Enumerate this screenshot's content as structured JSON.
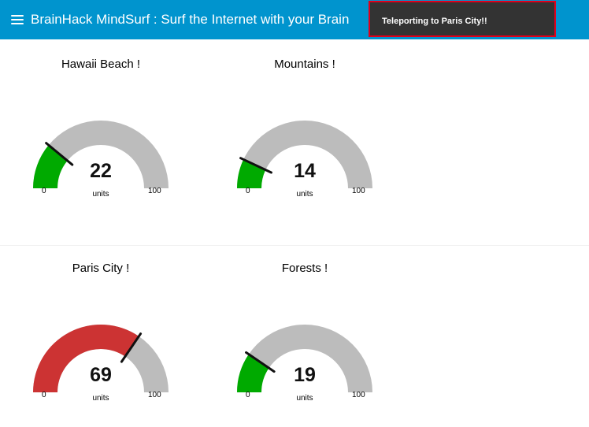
{
  "app": {
    "title": "BrainHack MindSurf : Surf the Internet with your Brain",
    "menu_icon": "hamburger-menu-icon"
  },
  "toast": {
    "message": "Teleporting to Paris City!!"
  },
  "colors": {
    "header_bg": "#0094ce",
    "gauge_track": "#bcbcbc",
    "gauge_low": "#00aa00",
    "gauge_high": "#cc3333",
    "toast_bg": "#333333",
    "toast_border": "#e0001b"
  },
  "gauges": [
    {
      "title": "Hawaii Beach !",
      "value": 22,
      "unit": "units",
      "min": "0",
      "max": "100",
      "status": "low"
    },
    {
      "title": "Mountains !",
      "value": 14,
      "unit": "units",
      "min": "0",
      "max": "100",
      "status": "low"
    },
    {
      "title": "Paris City !",
      "value": 69,
      "unit": "units",
      "min": "0",
      "max": "100",
      "status": "high"
    },
    {
      "title": "Forests !",
      "value": 19,
      "unit": "units",
      "min": "0",
      "max": "100",
      "status": "low"
    }
  ]
}
